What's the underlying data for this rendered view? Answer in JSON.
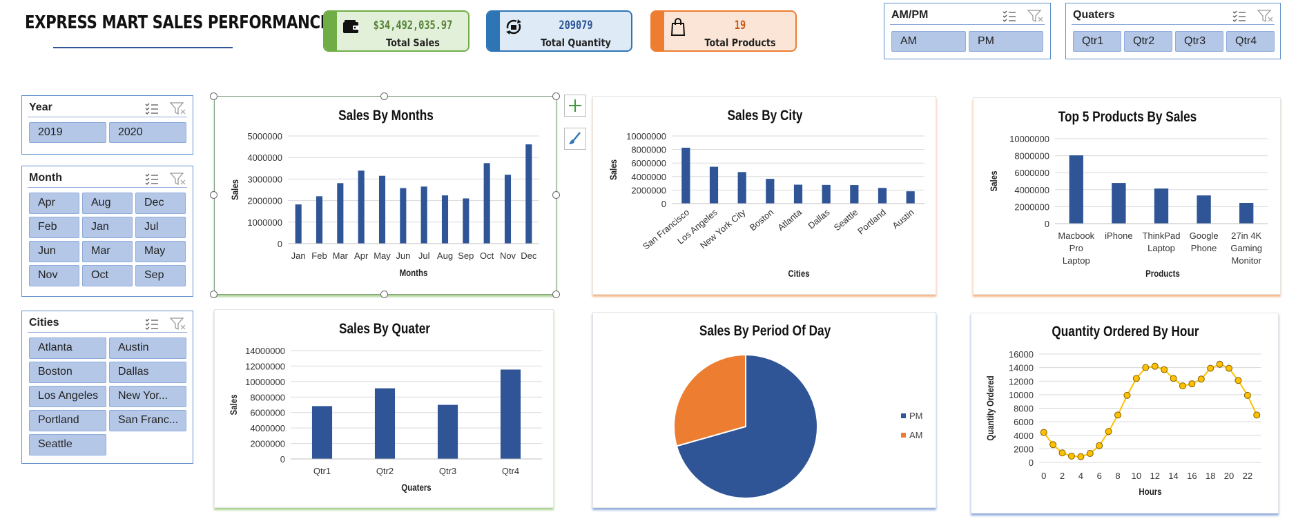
{
  "header": {
    "title": "EXPRESS MART SALES PERFORMANCE"
  },
  "kpis": [
    {
      "value": "$34,492,035.97",
      "label": "Total Sales",
      "icon": "wallet-icon",
      "color": "#70ad47",
      "bg": "#e2f0d9",
      "text": "#548235"
    },
    {
      "value": "209079",
      "label": "Total Quantity",
      "icon": "cycle-icon",
      "color": "#2e75b6",
      "bg": "#deebf7",
      "text": "#2f5597"
    },
    {
      "value": "19",
      "label": "Total Products",
      "icon": "shopping-bag-icon",
      "color": "#ed7d31",
      "bg": "#fbe5d6",
      "text": "#c55a11"
    }
  ],
  "slicers": {
    "ampm": {
      "title": "AM/PM",
      "items": [
        "AM",
        "PM"
      ]
    },
    "quarters": {
      "title": "Quaters",
      "items": [
        "Qtr1",
        "Qtr2",
        "Qtr3",
        "Qtr4"
      ]
    },
    "year": {
      "title": "Year",
      "items": [
        "2019",
        "2020"
      ]
    },
    "month": {
      "title": "Month",
      "items": [
        "Apr",
        "Aug",
        "Dec",
        "Feb",
        "Jan",
        "Jul",
        "Jun",
        "Mar",
        "May",
        "Nov",
        "Oct",
        "Sep"
      ]
    },
    "cities": {
      "title": "Cities",
      "items": [
        "Atlanta",
        "Austin",
        "Boston",
        "Dallas",
        "Los Angeles",
        "New Yor...",
        "Portland",
        "San Franc...",
        "Seattle"
      ]
    }
  },
  "colors": {
    "bar": "#2f5597",
    "pm": "#2f5597",
    "am": "#ed7d31",
    "line": "#ffc000",
    "marker": "#ffc000"
  },
  "chart_data": [
    {
      "id": "months",
      "type": "bar",
      "title": "Sales By Months",
      "xlabel": "Months",
      "ylabel": "Sales",
      "categories": [
        "Jan",
        "Feb",
        "Mar",
        "Apr",
        "May",
        "Jun",
        "Jul",
        "Aug",
        "Sep",
        "Oct",
        "Nov",
        "Dec"
      ],
      "values": [
        1820000,
        2200000,
        2810000,
        3390000,
        3150000,
        2580000,
        2650000,
        2240000,
        2100000,
        3740000,
        3200000,
        4610000
      ],
      "ylim": [
        0,
        5000000
      ],
      "yticks": [
        "0",
        "1000000",
        "2000000",
        "3000000",
        "4000000",
        "5000000"
      ]
    },
    {
      "id": "city",
      "type": "bar",
      "title": "Sales By City",
      "xlabel": "Cities",
      "ylabel": "Sales",
      "categories": [
        "San Francisco",
        "Los Angeles",
        "New York City",
        "Boston",
        "Atlanta",
        "Dallas",
        "Seattle",
        "Portland",
        "Austin"
      ],
      "values": [
        8260000,
        5450000,
        4660000,
        3660000,
        2800000,
        2770000,
        2750000,
        2320000,
        1820000
      ],
      "ylim": [
        0,
        10000000
      ],
      "yticks": [
        "0",
        "2000000",
        "4000000",
        "6000000",
        "8000000",
        "10000000"
      ]
    },
    {
      "id": "products",
      "type": "bar",
      "title": "Top 5 Products By Sales",
      "xlabel": "Products",
      "ylabel": "Sales",
      "categories": [
        [
          "Macbook",
          "Pro",
          "Laptop"
        ],
        [
          "iPhone"
        ],
        [
          "ThinkPad",
          "Laptop"
        ],
        [
          "Google",
          "Phone"
        ],
        [
          "27in 4K",
          "Gaming",
          "Monitor"
        ]
      ],
      "values": [
        8040000,
        4790000,
        4130000,
        3320000,
        2440000
      ],
      "ylim": [
        0,
        10000000
      ],
      "yticks": [
        "0",
        "2000000",
        "4000000",
        "6000000",
        "8000000",
        "10000000"
      ]
    },
    {
      "id": "quarter",
      "type": "bar",
      "title": "Sales By Quater",
      "xlabel": "Quaters",
      "ylabel": "Sales",
      "categories": [
        "Qtr1",
        "Qtr2",
        "Qtr3",
        "Qtr4"
      ],
      "values": [
        6830000,
        9130000,
        6990000,
        11550000
      ],
      "ylim": [
        0,
        14000000
      ],
      "yticks": [
        "0",
        "2000000",
        "4000000",
        "6000000",
        "8000000",
        "10000000",
        "12000000",
        "14000000"
      ]
    },
    {
      "id": "period",
      "type": "pie",
      "title": "Sales By Period Of Day",
      "slices": [
        {
          "name": "PM",
          "value": 70.6
        },
        {
          "name": "AM",
          "value": 29.4
        }
      ],
      "legend": "right"
    },
    {
      "id": "hour",
      "type": "line",
      "title": "Quantity Ordered By Hour",
      "xlabel": "Hours",
      "ylabel": "Quantity Ordered",
      "x": [
        0,
        1,
        2,
        3,
        4,
        5,
        6,
        7,
        8,
        9,
        10,
        11,
        12,
        13,
        14,
        15,
        16,
        17,
        18,
        19,
        20,
        21,
        22,
        23
      ],
      "values": [
        4430,
        2620,
        1400,
        930,
        850,
        1320,
        2480,
        4560,
        7000,
        9900,
        12400,
        14000,
        14200,
        13700,
        12400,
        11300,
        11600,
        12300,
        13900,
        14500,
        13900,
        12100,
        9900,
        7000
      ],
      "ylim": [
        0,
        16000
      ],
      "yticks": [
        "0",
        "2000",
        "4000",
        "6000",
        "8000",
        "10000",
        "12000",
        "14000",
        "16000"
      ],
      "xticks": [
        "0",
        "2",
        "4",
        "6",
        "8",
        "10",
        "12",
        "14",
        "16",
        "18",
        "20",
        "22"
      ]
    }
  ]
}
